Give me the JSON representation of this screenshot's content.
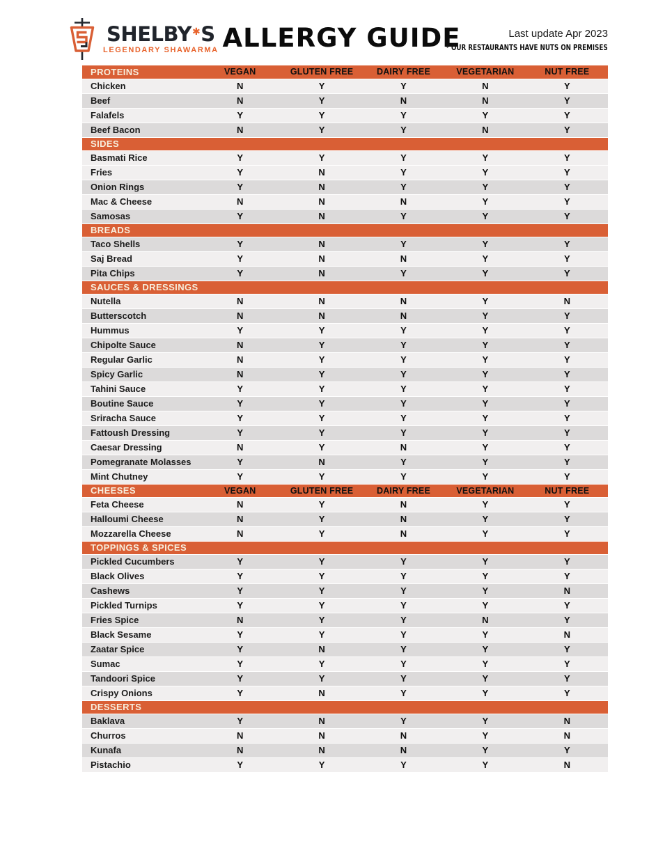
{
  "header": {
    "brand": {
      "name": "SHELBY'S",
      "name_pre": "SHELBY",
      "name_post": "S",
      "leaf_glyph": "✱",
      "tagline": "LEGENDARY SHAWARMA"
    },
    "title": "ALLERGY GUIDE",
    "last_update": "Last update Apr 2023",
    "note": "* OUR RESTAURANTS HAVE NUTS ON PREMISES"
  },
  "colors": {
    "accent_orange": "#d95f35",
    "logo_orange": "#e8632c",
    "section_label_cream": "#f7eedd",
    "row_light": "#f1efef",
    "row_dark": "#dcdada"
  },
  "table": {
    "columns": [
      "VEGAN",
      "GLUTEN FREE",
      "DAIRY FREE",
      "VEGETARIAN",
      "NUT FREE"
    ],
    "sections": [
      {
        "name": "PROTEINS",
        "show_columns": true,
        "rows": [
          {
            "item": "Chicken",
            "values": [
              "N",
              "Y",
              "Y",
              "N",
              "Y"
            ],
            "shade": "light"
          },
          {
            "item": "Beef",
            "values": [
              "N",
              "Y",
              "N",
              "N",
              "Y"
            ],
            "shade": "dark"
          },
          {
            "item": "Falafels",
            "values": [
              "Y",
              "Y",
              "Y",
              "Y",
              "Y"
            ],
            "shade": "light"
          },
          {
            "item": "Beef Bacon",
            "values": [
              "N",
              "Y",
              "Y",
              "N",
              "Y"
            ],
            "shade": "dark"
          }
        ]
      },
      {
        "name": "SIDES",
        "show_columns": false,
        "rows": [
          {
            "item": "Basmati Rice",
            "values": [
              "Y",
              "Y",
              "Y",
              "Y",
              "Y"
            ],
            "shade": "light"
          },
          {
            "item": "Fries",
            "values": [
              "Y",
              "N",
              "Y",
              "Y",
              "Y"
            ],
            "shade": "light"
          },
          {
            "item": "Onion Rings",
            "values": [
              "Y",
              "N",
              "Y",
              "Y",
              "Y"
            ],
            "shade": "dark"
          },
          {
            "item": "Mac & Cheese",
            "values": [
              "N",
              "N",
              "N",
              "Y",
              "Y"
            ],
            "shade": "light"
          },
          {
            "item": "Samosas",
            "values": [
              "Y",
              "N",
              "Y",
              "Y",
              "Y"
            ],
            "shade": "dark"
          }
        ]
      },
      {
        "name": "BREADS",
        "show_columns": false,
        "rows": [
          {
            "item": "Taco Shells",
            "values": [
              "Y",
              "N",
              "Y",
              "Y",
              "Y"
            ],
            "shade": "dark"
          },
          {
            "item": "Saj Bread",
            "values": [
              "Y",
              "N",
              "N",
              "Y",
              "Y"
            ],
            "shade": "light"
          },
          {
            "item": "Pita Chips",
            "values": [
              "Y",
              "N",
              "Y",
              "Y",
              "Y"
            ],
            "shade": "dark"
          }
        ]
      },
      {
        "name": "SAUCES & DRESSINGS",
        "show_columns": false,
        "rows": [
          {
            "item": "Nutella",
            "values": [
              "N",
              "N",
              "N",
              "Y",
              "N"
            ],
            "shade": "light"
          },
          {
            "item": "Butterscotch",
            "values": [
              "N",
              "N",
              "N",
              "Y",
              "Y"
            ],
            "shade": "dark"
          },
          {
            "item": "Hummus",
            "values": [
              "Y",
              "Y",
              "Y",
              "Y",
              "Y"
            ],
            "shade": "light"
          },
          {
            "item": "Chipolte Sauce",
            "values": [
              "N",
              "Y",
              "Y",
              "Y",
              "Y"
            ],
            "shade": "dark"
          },
          {
            "item": "Regular Garlic",
            "values": [
              "N",
              "Y",
              "Y",
              "Y",
              "Y"
            ],
            "shade": "light"
          },
          {
            "item": "Spicy Garlic",
            "values": [
              "N",
              "Y",
              "Y",
              "Y",
              "Y"
            ],
            "shade": "dark"
          },
          {
            "item": "Tahini Sauce",
            "values": [
              "Y",
              "Y",
              "Y",
              "Y",
              "Y"
            ],
            "shade": "light"
          },
          {
            "item": "Boutine Sauce",
            "values": [
              "Y",
              "Y",
              "Y",
              "Y",
              "Y"
            ],
            "shade": "dark"
          },
          {
            "item": "Sriracha Sauce",
            "values": [
              "Y",
              "Y",
              "Y",
              "Y",
              "Y"
            ],
            "shade": "light"
          },
          {
            "item": "Fattoush Dressing",
            "values": [
              "Y",
              "Y",
              "Y",
              "Y",
              "Y"
            ],
            "shade": "dark"
          },
          {
            "item": "Caesar Dressing",
            "values": [
              "N",
              "Y",
              "N",
              "Y",
              "Y"
            ],
            "shade": "light"
          },
          {
            "item": "Pomegranate Molasses",
            "values": [
              "Y",
              "N",
              "Y",
              "Y",
              "Y"
            ],
            "shade": "dark"
          },
          {
            "item": "Mint Chutney",
            "values": [
              "Y",
              "Y",
              "Y",
              "Y",
              "Y"
            ],
            "shade": "light"
          }
        ]
      },
      {
        "name": "CHEESES",
        "show_columns": true,
        "rows": [
          {
            "item": "Feta Cheese",
            "values": [
              "N",
              "Y",
              "N",
              "Y",
              "Y"
            ],
            "shade": "light"
          },
          {
            "item": "Halloumi Cheese",
            "values": [
              "N",
              "Y",
              "N",
              "Y",
              "Y"
            ],
            "shade": "dark"
          },
          {
            "item": "Mozzarella Cheese",
            "values": [
              "N",
              "Y",
              "N",
              "Y",
              "Y"
            ],
            "shade": "light"
          }
        ]
      },
      {
        "name": "TOPPINGS & SPICES",
        "show_columns": false,
        "rows": [
          {
            "item": "Pickled Cucumbers",
            "values": [
              "Y",
              "Y",
              "Y",
              "Y",
              "Y"
            ],
            "shade": "dark"
          },
          {
            "item": "Black Olives",
            "values": [
              "Y",
              "Y",
              "Y",
              "Y",
              "Y"
            ],
            "shade": "light"
          },
          {
            "item": "Cashews",
            "values": [
              "Y",
              "Y",
              "Y",
              "Y",
              "N"
            ],
            "shade": "dark"
          },
          {
            "item": "Pickled Turnips",
            "values": [
              "Y",
              "Y",
              "Y",
              "Y",
              "Y"
            ],
            "shade": "light"
          },
          {
            "item": "Fries Spice",
            "values": [
              "N",
              "Y",
              "Y",
              "N",
              "Y"
            ],
            "shade": "dark"
          },
          {
            "item": "Black Sesame",
            "values": [
              "Y",
              "Y",
              "Y",
              "Y",
              "N"
            ],
            "shade": "light"
          },
          {
            "item": "Zaatar Spice",
            "values": [
              "Y",
              "N",
              "Y",
              "Y",
              "Y"
            ],
            "shade": "dark"
          },
          {
            "item": "Sumac",
            "values": [
              "Y",
              "Y",
              "Y",
              "Y",
              "Y"
            ],
            "shade": "light"
          },
          {
            "item": "Tandoori Spice",
            "values": [
              "Y",
              "Y",
              "Y",
              "Y",
              "Y"
            ],
            "shade": "dark"
          },
          {
            "item": "Crispy Onions",
            "values": [
              "Y",
              "N",
              "Y",
              "Y",
              "Y"
            ],
            "shade": "light"
          }
        ]
      },
      {
        "name": "DESSERTS",
        "show_columns": false,
        "rows": [
          {
            "item": "Baklava",
            "values": [
              "Y",
              "N",
              "Y",
              "Y",
              "N"
            ],
            "shade": "dark"
          },
          {
            "item": "Churros",
            "values": [
              "N",
              "N",
              "N",
              "Y",
              "N"
            ],
            "shade": "light"
          },
          {
            "item": "Kunafa",
            "values": [
              "N",
              "N",
              "N",
              "Y",
              "Y"
            ],
            "shade": "dark"
          },
          {
            "item": "Pistachio",
            "values": [
              "Y",
              "Y",
              "Y",
              "Y",
              "N"
            ],
            "shade": "light"
          }
        ]
      }
    ]
  }
}
